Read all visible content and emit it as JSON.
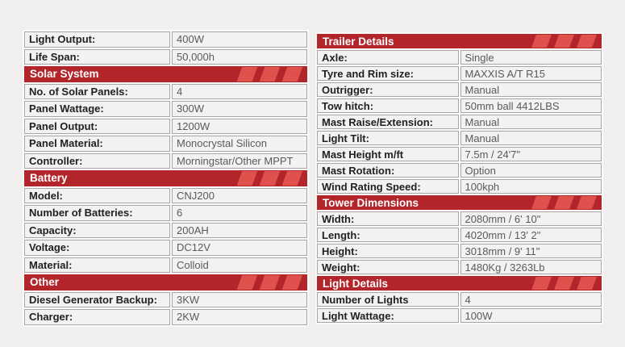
{
  "colors": {
    "page_bg": "#f1efed",
    "table_bg": "#fbfaf9",
    "cell_bg": "#f3f2f0",
    "cell_border": "#a8a6a4",
    "header_bg": "#b2252a",
    "header_stripe": "#e0514d",
    "header_text": "#ffffff",
    "label_text": "#232021",
    "value_text": "#5a5a5c"
  },
  "left_table": {
    "sections": [
      {
        "header": "",
        "rows": [
          {
            "label": "Light Output:",
            "value": "400W"
          },
          {
            "label": "Life Span:",
            "value": "50,000h"
          }
        ]
      },
      {
        "header": "Solar System",
        "rows": [
          {
            "label": "No. of Solar Panels:",
            "value": "4"
          },
          {
            "label": "Panel Wattage:",
            "value": "300W"
          },
          {
            "label": "Panel Output:",
            "value": "1200W"
          },
          {
            "label": "Panel Material:",
            "value": "Monocrystal Silicon"
          },
          {
            "label": "Controller:",
            "value": "Morningstar/Other MPPT"
          }
        ]
      },
      {
        "header": "Battery",
        "rows": [
          {
            "label": "Model:",
            "value": "CNJ200"
          },
          {
            "label": "Number of Batteries:",
            "value": "6"
          },
          {
            "label": "Capacity:",
            "value": "200AH"
          },
          {
            "label": "Voltage:",
            "value": "DC12V"
          },
          {
            "label": "Material:",
            "value": "Colloid"
          }
        ]
      },
      {
        "header": "Other",
        "rows": [
          {
            "label": "Diesel Generator Backup:",
            "value": "3KW"
          },
          {
            "label": "Charger:",
            "value": "2KW"
          }
        ]
      }
    ]
  },
  "right_table": {
    "sections": [
      {
        "header": "Trailer Details",
        "rows": [
          {
            "label": "Axle:",
            "value": "Single"
          },
          {
            "label": "Tyre and Rim size:",
            "value": "MAXXIS A/T R15"
          },
          {
            "label": "Outrigger:",
            "value": "Manual"
          },
          {
            "label": "Tow hitch:",
            "value": "50mm ball 4412LBS"
          },
          {
            "label": "Mast Raise/Extension:",
            "value": "Manual"
          },
          {
            "label": "Light Tilt:",
            "value": "Manual"
          },
          {
            "label": "Mast Height m/ft",
            "value": "7.5m / 24'7\""
          },
          {
            "label": "Mast Rotation:",
            "value": "Option"
          },
          {
            "label": "Wind Rating Speed:",
            "value": "100kph"
          }
        ]
      },
      {
        "header": "Tower Dimensions",
        "rows": [
          {
            "label": "Width:",
            "value": "2080mm / 6' 10\""
          },
          {
            "label": "Length:",
            "value": "4020mm / 13' 2\""
          },
          {
            "label": "Height:",
            "value": "3018mm / 9' 11\""
          },
          {
            "label": "Weight:",
            "value": "1480Kg / 3263Lb"
          }
        ]
      },
      {
        "header": "Light Details",
        "rows": [
          {
            "label": "Number of Lights",
            "value": "4"
          },
          {
            "label": "Light Wattage:",
            "value": "100W"
          }
        ]
      }
    ]
  }
}
